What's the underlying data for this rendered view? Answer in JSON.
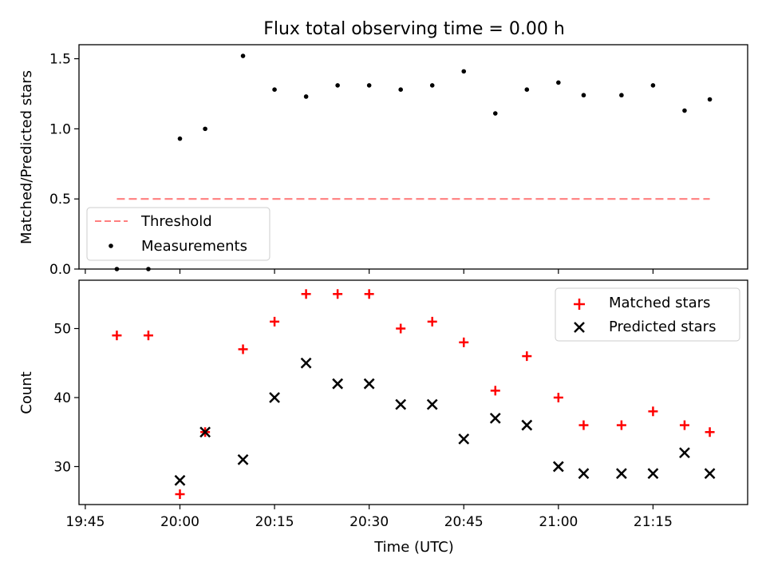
{
  "title": "Flux total observing time = 0.00 h",
  "chart_data": [
    {
      "type": "scatter",
      "ylabel": "Matched/Predicted stars",
      "ylim": [
        0,
        1.6
      ],
      "yticks": [
        0.0,
        0.5,
        1.0,
        1.5
      ],
      "ytick_labels": [
        "0.0",
        "0.5",
        "1.0",
        "1.5"
      ],
      "xlim": [
        "19:44",
        "21:30"
      ],
      "grid": false,
      "legend_position": "lower-left",
      "threshold": {
        "name": "Threshold",
        "value": 0.5,
        "x_range": [
          "19:50",
          "21:24"
        ],
        "color": "#ff7f7f"
      },
      "series": [
        {
          "name": "Measurements",
          "color": "#000000",
          "x": [
            "19:50",
            "19:55",
            "20:00",
            "20:04",
            "20:10",
            "20:15",
            "20:20",
            "20:25",
            "20:30",
            "20:35",
            "20:40",
            "20:45",
            "20:50",
            "20:55",
            "21:00",
            "21:04",
            "21:10",
            "21:15",
            "21:20",
            "21:24"
          ],
          "values": [
            0.0,
            0.0,
            0.93,
            1.0,
            1.52,
            1.28,
            1.23,
            1.31,
            1.31,
            1.28,
            1.31,
            1.41,
            1.11,
            1.28,
            1.33,
            1.24,
            1.24,
            1.31,
            1.13,
            1.21
          ]
        }
      ]
    },
    {
      "type": "scatter",
      "xlabel": "Time (UTC)",
      "ylabel": "Count",
      "ylim": [
        24.5,
        57
      ],
      "yticks": [
        30,
        40,
        50
      ],
      "ytick_labels": [
        "30",
        "40",
        "50"
      ],
      "xlim": [
        "19:44",
        "21:30"
      ],
      "xticks": [
        "19:45",
        "20:00",
        "20:15",
        "20:30",
        "20:45",
        "21:00",
        "21:15"
      ],
      "grid": false,
      "legend_position": "upper-right",
      "series": [
        {
          "name": "Matched stars",
          "marker": "plus",
          "color": "#ff0000",
          "x": [
            "19:50",
            "19:55",
            "20:00",
            "20:04",
            "20:10",
            "20:15",
            "20:20",
            "20:25",
            "20:30",
            "20:35",
            "20:40",
            "20:45",
            "20:50",
            "20:55",
            "21:00",
            "21:04",
            "21:10",
            "21:15",
            "21:20",
            "21:24"
          ],
          "values": [
            49,
            49,
            26,
            35,
            47,
            51,
            55,
            55,
            55,
            50,
            51,
            48,
            41,
            46,
            40,
            36,
            36,
            38,
            36,
            35
          ]
        },
        {
          "name": "Predicted stars",
          "marker": "x",
          "color": "#000000",
          "x": [
            "20:00",
            "20:04",
            "20:10",
            "20:15",
            "20:20",
            "20:25",
            "20:30",
            "20:35",
            "20:40",
            "20:45",
            "20:50",
            "20:55",
            "21:00",
            "21:04",
            "21:10",
            "21:15",
            "21:20",
            "21:24"
          ],
          "values": [
            28,
            35,
            31,
            40,
            45,
            42,
            42,
            39,
            39,
            34,
            37,
            36,
            30,
            29,
            29,
            29,
            32,
            29
          ]
        }
      ]
    }
  ]
}
